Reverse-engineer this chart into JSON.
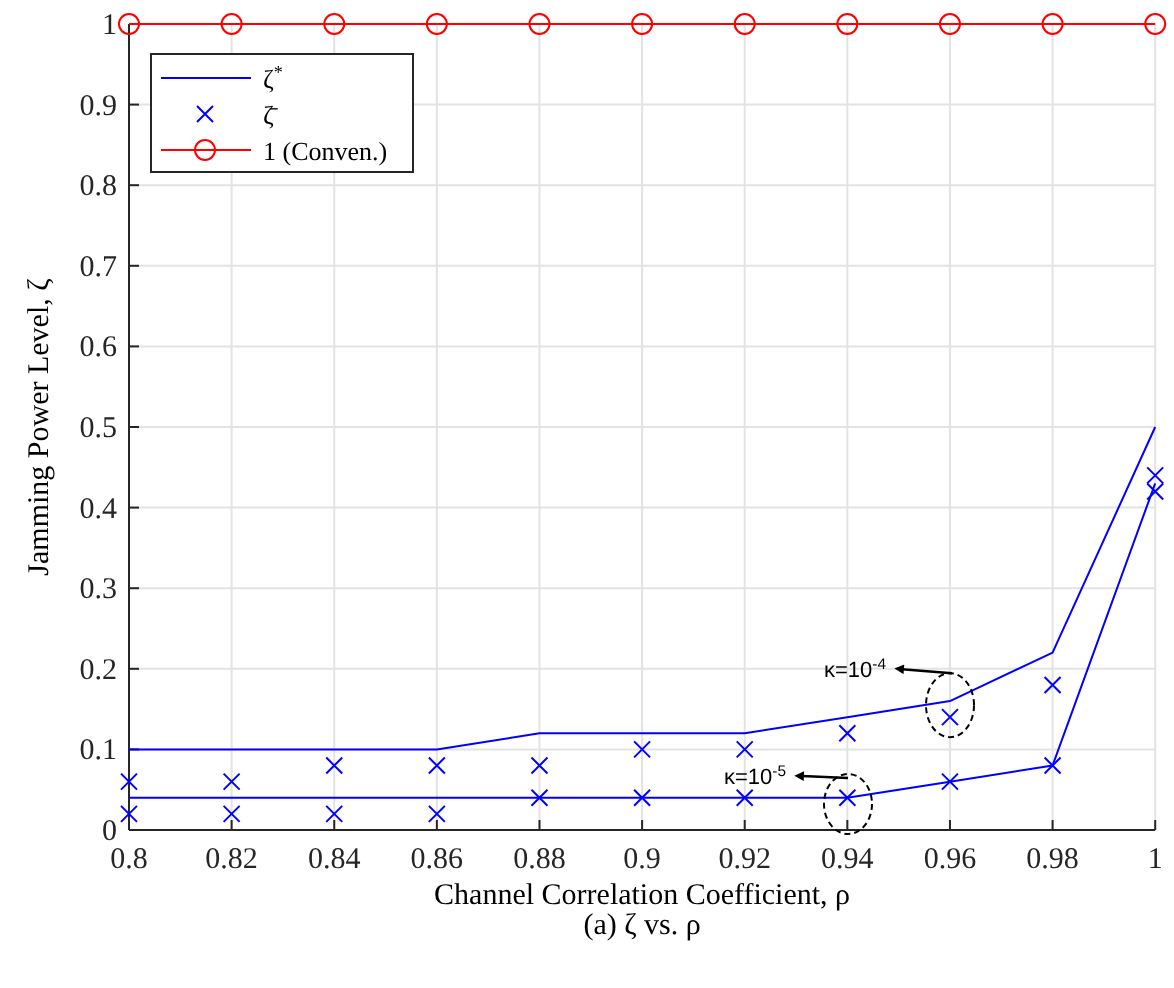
{
  "chart_data": {
    "type": "line",
    "xlabel": "Channel Correlation Coefficient, ρ",
    "ylabel": "Jamming Power Level, ζ",
    "x": [
      0.8,
      0.82,
      0.84,
      0.86,
      0.88,
      0.9,
      0.92,
      0.94,
      0.96,
      0.98,
      1
    ],
    "series": [
      {
        "name": "ζ$^{*}$",
        "color": "#0000ff",
        "marker": "none",
        "values": [
          0.1,
          0.1,
          0.1,
          0.1,
          0.12,
          0.12,
          0.12,
          0.14,
          0.16,
          0.22,
          0.5
        ]
      },
      {
        "color": "#0000ff",
        "marker": "none",
        "values": [
          0.04,
          0.04,
          0.04,
          0.04,
          0.04,
          0.04,
          0.04,
          0.04,
          0.06,
          0.08,
          0.43
        ]
      },
      {
        "type": "scatter",
        "name": "ζ̄",
        "color": "#0000ff",
        "marker": "cross",
        "values": [
          0.06,
          0.06,
          0.08,
          0.08,
          0.08,
          0.1,
          0.1,
          0.12,
          0.14,
          0.18,
          0.44
        ]
      },
      {
        "type": "scatter",
        "color": "#0000ff",
        "marker": "cross",
        "values": [
          0.02,
          0.02,
          0.02,
          0.02,
          0.04,
          0.04,
          0.04,
          0.04,
          0.06,
          0.08,
          0.42
        ]
      },
      {
        "name": "1 (Conven.)",
        "color": "#ff0000",
        "marker": "circle",
        "values": [
          1,
          1,
          1,
          1,
          1,
          1,
          1,
          1,
          1,
          1,
          1
        ]
      }
    ],
    "xlim": [
      0.8,
      1
    ],
    "xticks": [
      0.8,
      0.82,
      0.84,
      0.86,
      0.88,
      0.9,
      0.92,
      0.94,
      0.96,
      0.98,
      1
    ],
    "ylim": [
      0,
      1
    ],
    "yticks": [
      0,
      0.1,
      0.2,
      0.3,
      0.4,
      0.5,
      0.6,
      0.7,
      0.8,
      0.9,
      1
    ],
    "grid": true,
    "legend": "top left",
    "line_style": "solid",
    "annotations": [
      "κ=10$^{-4}$",
      "κ=10$^{-5}$",
      "(a) ζ vs. ρ"
    ]
  }
}
